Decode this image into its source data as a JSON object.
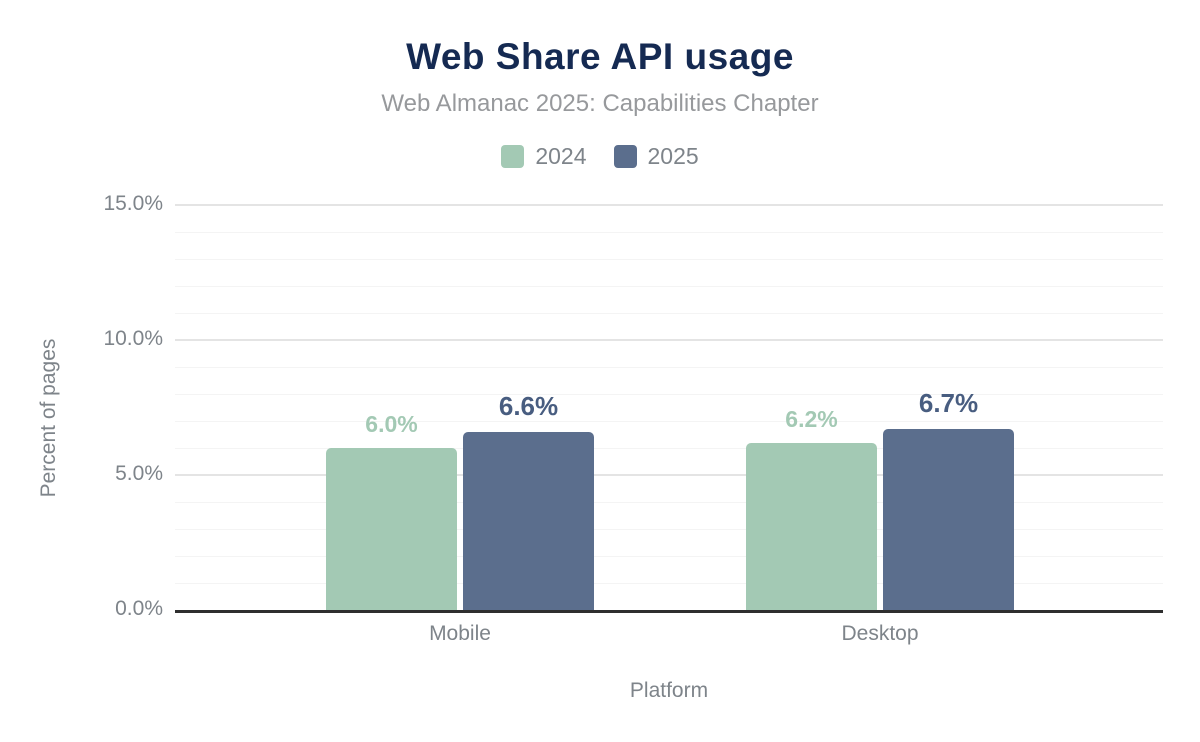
{
  "chart_data": {
    "type": "bar",
    "title": "Web Share API usage",
    "subtitle": "Web Almanac 2025: Capabilities Chapter",
    "xlabel": "Platform",
    "ylabel": "Percent of pages",
    "categories": [
      "Mobile",
      "Desktop"
    ],
    "series": [
      {
        "name": "2024",
        "color": "#a3c9b4",
        "label_color": "#a3c9b4",
        "values": [
          6.0,
          6.2
        ],
        "labels": [
          "6.0%",
          "6.2%"
        ]
      },
      {
        "name": "2025",
        "color": "#5b6e8d",
        "label_color": "#485d80",
        "values": [
          6.6,
          6.7
        ],
        "labels": [
          "6.6%",
          "6.7%"
        ]
      }
    ],
    "ylim": [
      0,
      15
    ],
    "y_ticks": [
      {
        "value": 0,
        "label": "0.0%"
      },
      {
        "value": 5,
        "label": "5.0%"
      },
      {
        "value": 10,
        "label": "10.0%"
      },
      {
        "value": 15,
        "label": "15.0%"
      }
    ],
    "minor_grid_step": 1,
    "major_grid_step": 5,
    "grid": true,
    "legend_position": "top"
  },
  "colors": {
    "background": "#ffffff",
    "title": "#152a52",
    "subtitle": "#97999c",
    "axis_text": "#7e848a",
    "axis_line": "#2e2e2e",
    "major_grid": "#e4e4e4",
    "minor_grid": "#f4f4f4"
  }
}
